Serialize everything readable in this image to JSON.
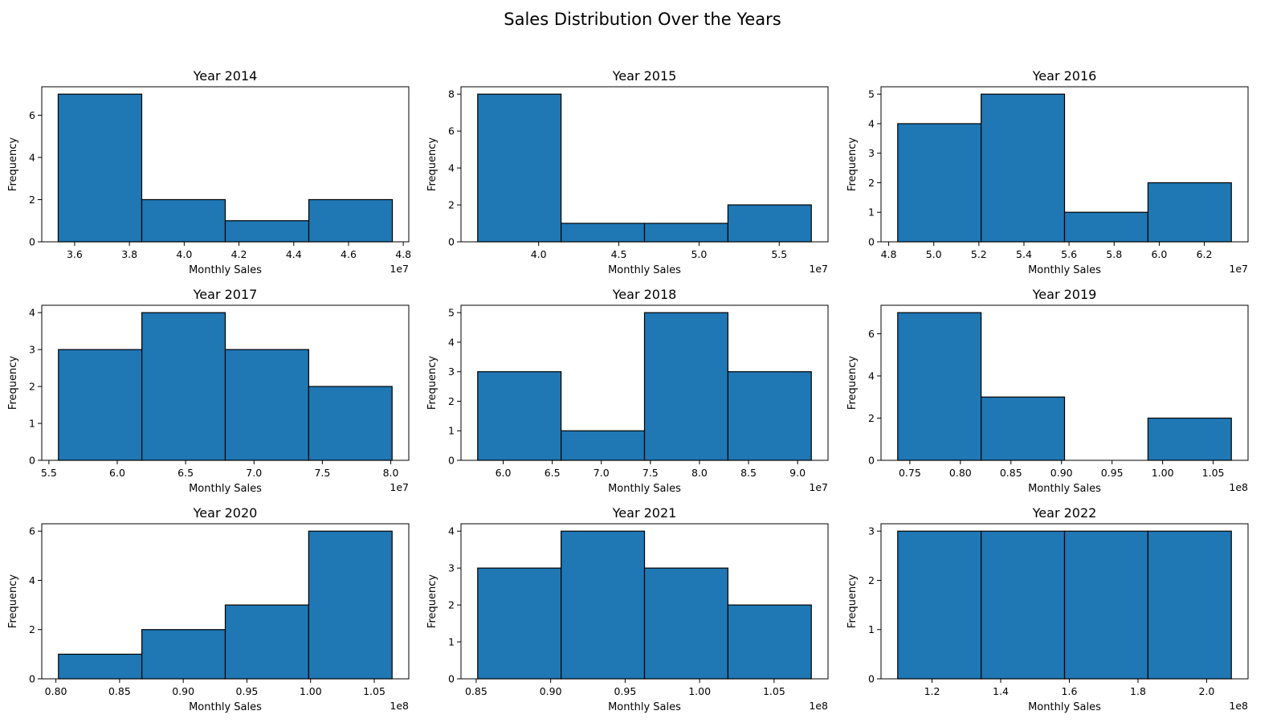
{
  "figure": {
    "title": "Sales Distribution Over the Years"
  },
  "chart_data": [
    {
      "type": "bar",
      "title": "Year 2014",
      "xlabel": "Monthly Sales",
      "ylabel": "Frequency",
      "x_offset_label": "1e7",
      "bin_edges": [
        35400000,
        38450000,
        41500000,
        44550000,
        47600000
      ],
      "counts": [
        7,
        2,
        1,
        2
      ],
      "xlim": [
        34800000,
        48200000
      ],
      "ylim": [
        0,
        7.35
      ],
      "xticks": [
        36000000,
        38000000,
        40000000,
        42000000,
        44000000,
        46000000,
        48000000
      ],
      "xtick_labels": [
        "3.6",
        "3.8",
        "4.0",
        "4.2",
        "4.4",
        "4.6",
        "4.8"
      ],
      "yticks": [
        0,
        2,
        4,
        6
      ],
      "color": "#1f77b4"
    },
    {
      "type": "bar",
      "title": "Year 2015",
      "xlabel": "Monthly Sales",
      "ylabel": "Frequency",
      "x_offset_label": "1e7",
      "bin_edges": [
        36200000,
        41400000,
        46600000,
        51800000,
        57000000
      ],
      "counts": [
        8,
        1,
        1,
        2
      ],
      "xlim": [
        35160000,
        58040000
      ],
      "ylim": [
        0,
        8.4
      ],
      "xticks": [
        40000000,
        45000000,
        50000000,
        55000000
      ],
      "xtick_labels": [
        "4.0",
        "4.5",
        "5.0",
        "5.5"
      ],
      "yticks": [
        0,
        2,
        4,
        6,
        8
      ],
      "color": "#1f77b4"
    },
    {
      "type": "bar",
      "title": "Year 2016",
      "xlabel": "Monthly Sales",
      "ylabel": "Frequency",
      "x_offset_label": "1e7",
      "bin_edges": [
        48400000,
        52100000,
        55800000,
        59500000,
        63200000
      ],
      "counts": [
        4,
        5,
        1,
        2
      ],
      "xlim": [
        47660000,
        63940000
      ],
      "ylim": [
        0,
        5.25
      ],
      "xticks": [
        48000000,
        50000000,
        52000000,
        54000000,
        56000000,
        58000000,
        60000000,
        62000000
      ],
      "xtick_labels": [
        "4.8",
        "5.0",
        "5.2",
        "5.4",
        "5.6",
        "5.8",
        "6.0",
        "6.2"
      ],
      "yticks": [
        0,
        1,
        2,
        3,
        4,
        5
      ],
      "color": "#1f77b4"
    },
    {
      "type": "bar",
      "title": "Year 2017",
      "xlabel": "Monthly Sales",
      "ylabel": "Frequency",
      "x_offset_label": "1e7",
      "bin_edges": [
        55700000,
        61800000,
        67900000,
        74000000,
        80100000
      ],
      "counts": [
        3,
        4,
        3,
        2
      ],
      "xlim": [
        54480000,
        81320000
      ],
      "ylim": [
        0,
        4.2
      ],
      "xticks": [
        55000000,
        60000000,
        65000000,
        70000000,
        75000000,
        80000000
      ],
      "xtick_labels": [
        "5.5",
        "6.0",
        "6.5",
        "7.0",
        "7.5",
        "8.0"
      ],
      "yticks": [
        0,
        1,
        2,
        3,
        4
      ],
      "color": "#1f77b4"
    },
    {
      "type": "bar",
      "title": "Year 2018",
      "xlabel": "Monthly Sales",
      "ylabel": "Frequency",
      "x_offset_label": "1e7",
      "bin_edges": [
        57400000,
        65900000,
        74400000,
        82900000,
        91400000
      ],
      "counts": [
        3,
        1,
        5,
        3
      ],
      "xlim": [
        55700000,
        93100000
      ],
      "ylim": [
        0,
        5.25
      ],
      "xticks": [
        60000000,
        65000000,
        70000000,
        75000000,
        80000000,
        85000000,
        90000000
      ],
      "xtick_labels": [
        "6.0",
        "6.5",
        "7.0",
        "7.5",
        "8.0",
        "8.5",
        "9.0"
      ],
      "yticks": [
        0,
        1,
        2,
        3,
        4,
        5
      ],
      "color": "#1f77b4"
    },
    {
      "type": "bar",
      "title": "Year 2019",
      "xlabel": "Monthly Sales",
      "ylabel": "Frequency",
      "x_offset_label": "1e8",
      "bin_edges": [
        73800000,
        82050000,
        90300000,
        98550000,
        106800000
      ],
      "counts": [
        7,
        3,
        0,
        2
      ],
      "xlim": [
        72150000,
        108450000
      ],
      "ylim": [
        0,
        7.35
      ],
      "xticks": [
        75000000,
        80000000,
        85000000,
        90000000,
        95000000,
        100000000,
        105000000
      ],
      "xtick_labels": [
        "0.75",
        "0.80",
        "0.85",
        "0.90",
        "0.95",
        "1.00",
        "1.05"
      ],
      "yticks": [
        0,
        2,
        4,
        6
      ],
      "color": "#1f77b4"
    },
    {
      "type": "bar",
      "title": "Year 2020",
      "xlabel": "Monthly Sales",
      "ylabel": "Frequency",
      "x_offset_label": "1e8",
      "bin_edges": [
        80200000,
        86750000,
        93300000,
        99850000,
        106400000
      ],
      "counts": [
        1,
        2,
        3,
        6
      ],
      "xlim": [
        78890000,
        107710000
      ],
      "ylim": [
        0,
        6.3
      ],
      "xticks": [
        80000000,
        85000000,
        90000000,
        95000000,
        100000000,
        105000000
      ],
      "xtick_labels": [
        "0.80",
        "0.85",
        "0.90",
        "0.95",
        "1.00",
        "1.05"
      ],
      "yticks": [
        0,
        2,
        4,
        6
      ],
      "color": "#1f77b4"
    },
    {
      "type": "bar",
      "title": "Year 2021",
      "xlabel": "Monthly Sales",
      "ylabel": "Frequency",
      "x_offset_label": "1e8",
      "bin_edges": [
        85100000,
        90700000,
        96300000,
        101900000,
        107500000
      ],
      "counts": [
        3,
        4,
        3,
        2
      ],
      "xlim": [
        83980000,
        108620000
      ],
      "ylim": [
        0,
        4.2
      ],
      "xticks": [
        85000000,
        90000000,
        95000000,
        100000000,
        105000000
      ],
      "xtick_labels": [
        "0.85",
        "0.90",
        "0.95",
        "1.00",
        "1.05"
      ],
      "yticks": [
        0,
        1,
        2,
        3,
        4
      ],
      "color": "#1f77b4"
    },
    {
      "type": "bar",
      "title": "Year 2022",
      "xlabel": "Monthly Sales",
      "ylabel": "Frequency",
      "x_offset_label": "1e8",
      "bin_edges": [
        110000000,
        134300000,
        158600000,
        182900000,
        207200000
      ],
      "counts": [
        3,
        3,
        3,
        3
      ],
      "xlim": [
        105140000,
        212060000
      ],
      "ylim": [
        0,
        3.15
      ],
      "xticks": [
        120000000,
        140000000,
        160000000,
        180000000,
        200000000
      ],
      "xtick_labels": [
        "1.2",
        "1.4",
        "1.6",
        "1.8",
        "2.0"
      ],
      "yticks": [
        0,
        1,
        2,
        3
      ],
      "color": "#1f77b4"
    }
  ]
}
